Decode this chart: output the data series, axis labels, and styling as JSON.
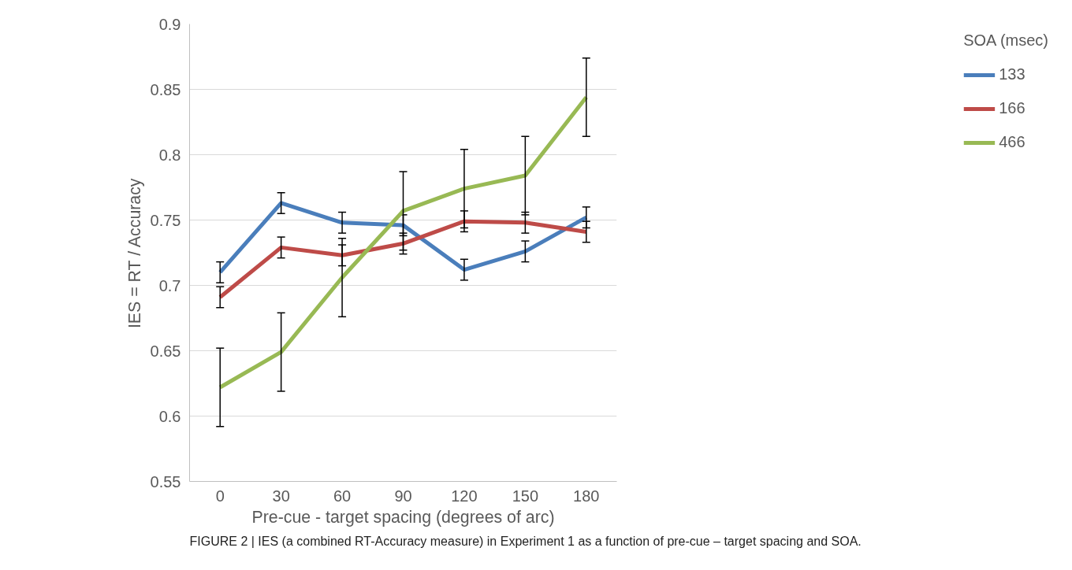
{
  "chart_data": {
    "type": "line",
    "xlabel": "Pre-cue - target spacing (degrees of arc)",
    "ylabel": "IES = RT / Accuracy",
    "legend_title": "SOA (msec)",
    "legend": "right",
    "grid": "y",
    "marker": "none",
    "line_style": "solid",
    "categories": [
      "0",
      "30",
      "60",
      "90",
      "120",
      "150",
      "180"
    ],
    "ylim": [
      0.55,
      0.9
    ],
    "yticks": [
      0.55,
      0.6,
      0.65,
      0.7,
      0.75,
      0.8,
      0.85,
      0.9
    ],
    "series": [
      {
        "name": "133",
        "color": "#4a7ebb",
        "values": [
          0.71,
          0.763,
          0.748,
          0.746,
          0.712,
          0.726,
          0.752
        ],
        "errors": [
          0.008,
          0.008,
          0.008,
          0.008,
          0.008,
          0.008,
          0.008
        ]
      },
      {
        "name": "166",
        "color": "#be4b48",
        "values": [
          0.691,
          0.729,
          0.723,
          0.732,
          0.749,
          0.748,
          0.741
        ],
        "errors": [
          0.008,
          0.008,
          0.008,
          0.008,
          0.008,
          0.008,
          0.008
        ]
      },
      {
        "name": "466",
        "color": "#98b954",
        "values": [
          0.622,
          0.649,
          0.706,
          0.757,
          0.774,
          0.784,
          0.844
        ],
        "errors": [
          0.03,
          0.03,
          0.03,
          0.03,
          0.03,
          0.03,
          0.03
        ]
      }
    ],
    "annotations": [
      "FIGURE 2 | IES (a combined RT-Accuracy measure) in Experiment 1 as a function of pre-cue – target spacing and SOA."
    ]
  }
}
